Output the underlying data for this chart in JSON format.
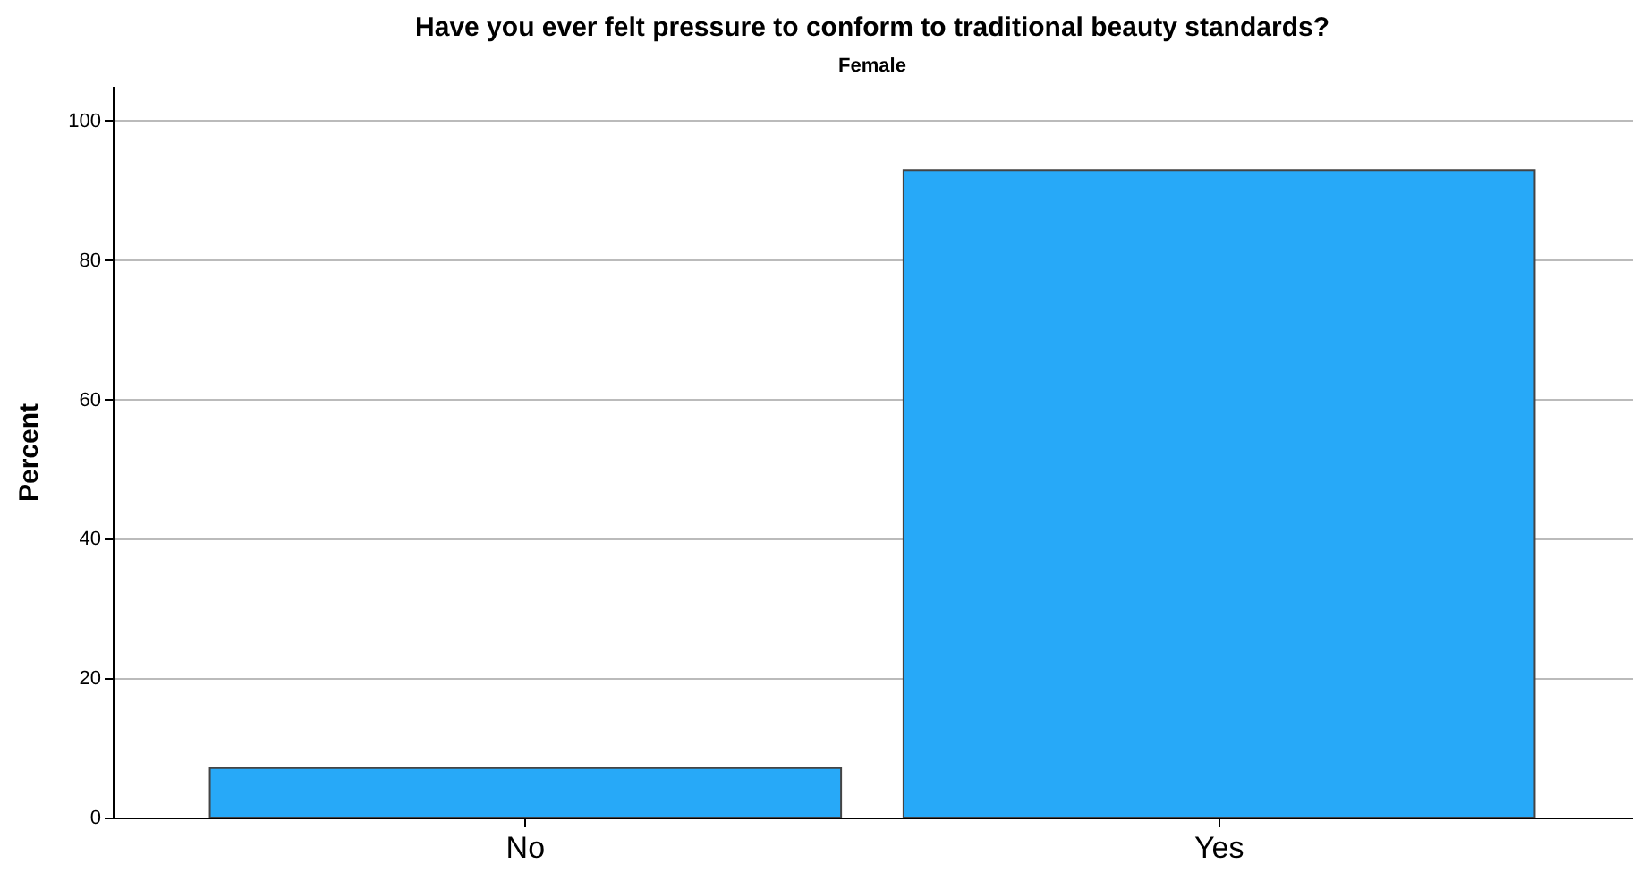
{
  "chart_data": {
    "type": "bar",
    "title": "Have you ever felt pressure to conform to traditional beauty standards?",
    "subtitle": "Female",
    "ylabel": "Percent",
    "categories": [
      "No",
      "Yes"
    ],
    "values": [
      7.1,
      92.9
    ],
    "color": "#27a9f8",
    "ylim": [
      0,
      105
    ],
    "yticks": [
      0,
      20,
      40,
      60,
      80,
      100
    ],
    "grid": "y"
  }
}
